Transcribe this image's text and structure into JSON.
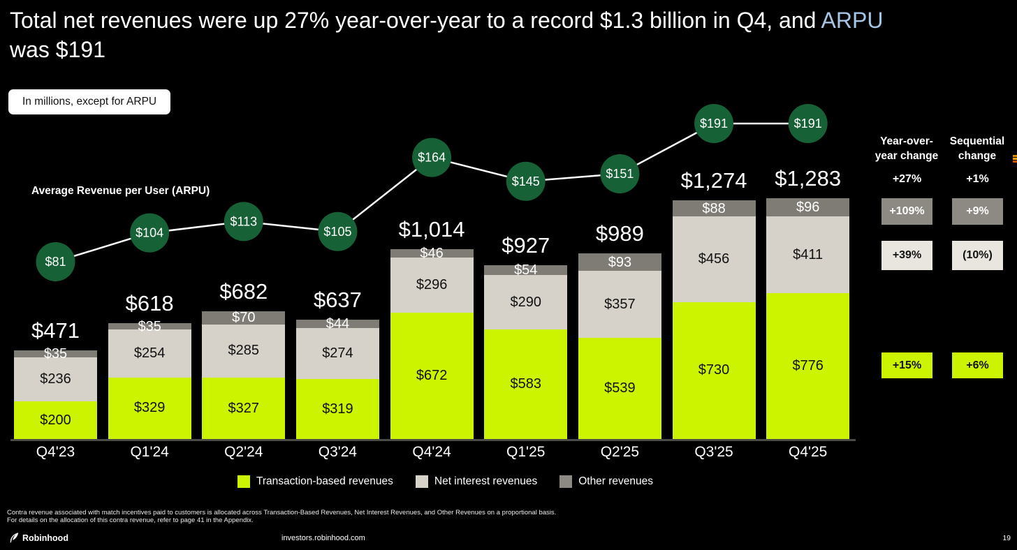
{
  "title": {
    "pre": "Total net revenues were up 27% year-over-year to a record $1.3 billion in Q4, and ",
    "highlight": "ARPU",
    "line2": "was $191"
  },
  "units_badge": "In millions, except for ARPU",
  "arpu_axis_label": "Average Revenue per User (ARPU)",
  "chart_data": {
    "type": "bar",
    "stacked": true,
    "units": "USD millions",
    "categories": [
      "Q4'23",
      "Q1'24",
      "Q2'24",
      "Q3'24",
      "Q4'24",
      "Q1'25",
      "Q2'25",
      "Q3'25",
      "Q4'25"
    ],
    "series": [
      {
        "name": "Transaction-based revenues",
        "color": "#ccf400",
        "values": [
          200,
          329,
          327,
          319,
          672,
          583,
          539,
          730,
          776
        ]
      },
      {
        "name": "Net interest revenues",
        "color": "#d6d2ca",
        "values": [
          236,
          254,
          285,
          274,
          296,
          290,
          357,
          456,
          411
        ]
      },
      {
        "name": "Other revenues",
        "color": "#7f7b75",
        "values": [
          35,
          35,
          70,
          44,
          46,
          54,
          93,
          88,
          96
        ]
      }
    ],
    "totals": [
      "$471",
      "$618",
      "$682",
      "$637",
      "$1,014",
      "$927",
      "$989",
      "$1,274",
      "$1,283"
    ],
    "line_overlay": {
      "name": "Average Revenue per User (ARPU)",
      "color": "#166236",
      "values": [
        81,
        104,
        113,
        105,
        164,
        145,
        151,
        191,
        191
      ]
    }
  },
  "changes": {
    "col1_header": "Year-over-\nyear change",
    "col2_header": "Sequential\nchange",
    "rows": [
      {
        "yoy": "+27%",
        "seq": "+1%",
        "style": "plain",
        "refers_to": "Total net revenues"
      },
      {
        "yoy": "+109%",
        "seq": "+9%",
        "style": "dark",
        "refers_to": "Other revenues"
      },
      {
        "yoy": "+39%",
        "seq": "(10%)",
        "style": "light",
        "refers_to": "Net interest revenues"
      },
      {
        "yoy": "+15%",
        "seq": "+6%",
        "style": "green",
        "refers_to": "Transaction-based revenues"
      }
    ]
  },
  "legend": [
    {
      "label": "Transaction-based revenues",
      "color": "#ccf400"
    },
    {
      "label": "Net interest revenues",
      "color": "#d6d2ca"
    },
    {
      "label": "Other revenues",
      "color": "#8d8983"
    }
  ],
  "footnote": {
    "line1": "Contra revenue associated with match incentives paid to customers is allocated across Transaction-Based Revenues, Net Interest Revenues, and Other Revenues on a proportional basis.",
    "line2": "For details on the allocation of this contra revenue, refer to page 41 in the Appendix."
  },
  "footer": {
    "brand": "Robinhood",
    "url": "investors.robinhood.com",
    "page": "19"
  }
}
